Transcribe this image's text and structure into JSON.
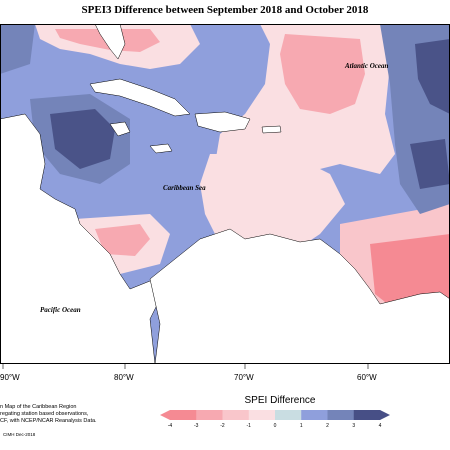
{
  "title": "SPEI3 Difference between September 2018 and October 2018",
  "labels": {
    "atlantic": "Atlantic Ocean",
    "caribbean": "Caribbean Sea",
    "pacific": "Pacific Ocean"
  },
  "longitudes": [
    "90°W",
    "80°W",
    "70°W",
    "60°W"
  ],
  "legend": {
    "title": "SPEI Difference",
    "ticks": [
      "-4",
      "-3",
      "-2",
      "-1",
      "0",
      "1",
      "2",
      "3",
      "4"
    ],
    "colors": [
      "#f58a93",
      "#f7a9b1",
      "#f9c6cb",
      "#fadfe2",
      "#ffffff",
      "#c9dde2",
      "#8f9fdc",
      "#7484b9",
      "#474f86"
    ]
  },
  "credit_lines": [
    "n Map of the Caribbean Region",
    "regating station based observations,",
    "CF, with NCEP/NCAR Reanalysis Data."
  ],
  "credit_date": "CIMH Dec-2018",
  "palette": {
    "land": "#ffffff",
    "strong_wet": "#4a5388",
    "wet": "#7484b9",
    "moderate_wet": "#8f9fdc",
    "slight_wet": "#c9dde2",
    "slight_dry": "#fadfe2",
    "dry": "#f7a9b1",
    "strong_dry": "#f58a93"
  }
}
